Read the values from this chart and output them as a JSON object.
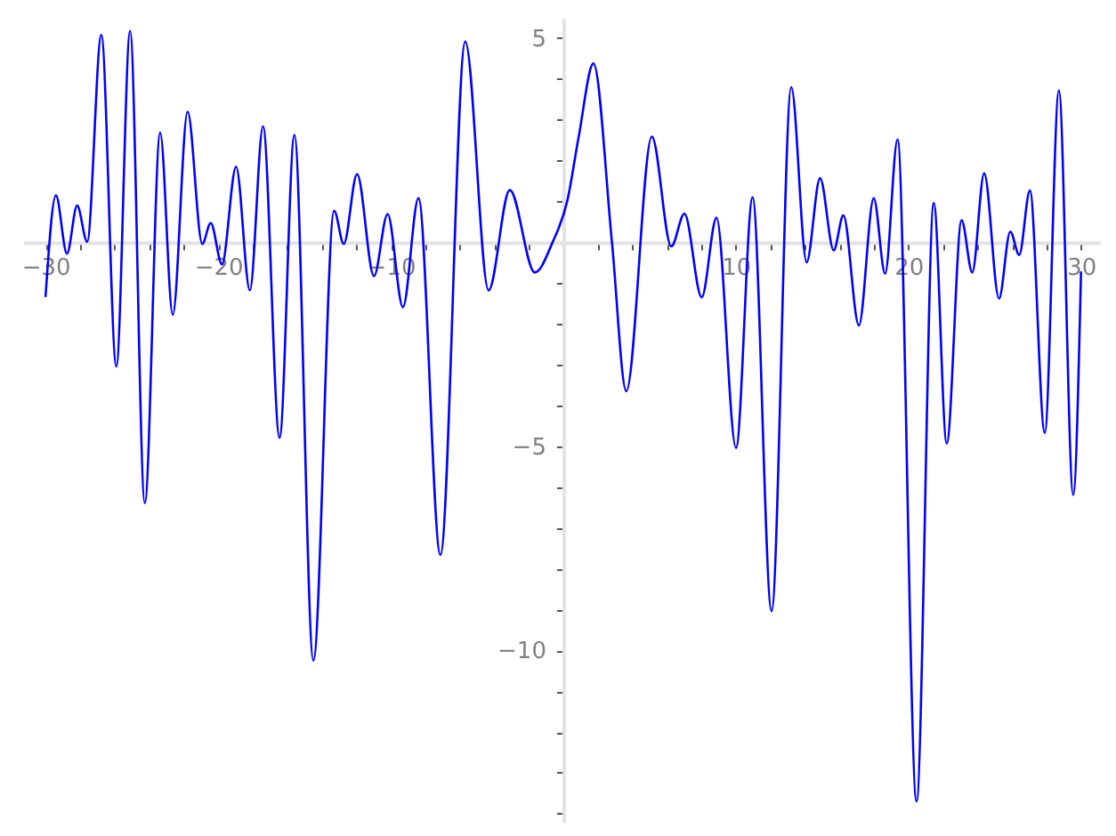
{
  "chart_data": {
    "type": "line",
    "x": [
      -30,
      -29.4,
      -28.76,
      -28.17,
      -27.59,
      -26.77,
      -25.9,
      -25.1,
      -24.25,
      -23.36,
      -22.63,
      -21.77,
      -20.92,
      -20.43,
      -19.78,
      -18.96,
      -18.16,
      -17.4,
      -16.44,
      -15.58,
      -14.48,
      -13.28,
      -12.72,
      -11.95,
      -10.97,
      -10.18,
      -9.29,
      -8.39,
      -7.12,
      -5.68,
      -4.33,
      -3.1,
      -1.65,
      -0.62,
      0.24,
      0.9,
      1.75,
      2.82,
      3.65,
      5.13,
      6.26,
      7.02,
      8.02,
      8.88,
      10.01,
      10.97,
      12.07,
      13.21,
      14.1,
      14.88,
      15.67,
      16.23,
      17.13,
      17.99,
      18.65,
      19.37,
      20.47,
      21.47,
      22.22,
      23.08,
      23.7,
      24.39,
      25.25,
      25.9,
      26.42,
      27.04,
      27.9,
      28.72,
      29.55,
      30
    ],
    "series": [
      {
        "color": "#0000ff",
        "values": [
          -1.32,
          1.15,
          -0.28,
          0.9,
          0.01,
          5.08,
          -3.04,
          5.18,
          -6.39,
          2.69,
          -1.78,
          3.2,
          -0.04,
          0.47,
          -0.54,
          1.85,
          -1.18,
          2.84,
          -4.79,
          2.63,
          -10.25,
          0.77,
          -0.04,
          1.67,
          -0.83,
          0.69,
          -1.59,
          1.08,
          -7.66,
          4.92,
          -1.18,
          1.28,
          -0.74,
          0.0,
          1.03,
          2.6,
          4.38,
          0.0,
          -3.65,
          2.59,
          -0.1,
          0.7,
          -1.35,
          0.6,
          -5.04,
          1.1,
          -9.04,
          3.8,
          -0.49,
          1.57,
          -0.2,
          0.66,
          -2.04,
          1.08,
          -0.77,
          2.52,
          -13.7,
          0.96,
          -4.93,
          0.54,
          -0.74,
          1.69,
          -1.38,
          0.26,
          -0.31,
          1.27,
          -4.67,
          3.72,
          -6.19,
          -0.74
        ]
      }
    ],
    "xlim": [
      -31.3,
      31.1
    ],
    "ylim": [
      -14.2,
      5.5
    ],
    "xticks": [
      -30,
      {
        "value": -28,
        "label": null
      },
      {
        "value": -26,
        "label": null
      },
      {
        "value": -24,
        "label": null
      },
      {
        "value": -22,
        "label": null
      },
      -20,
      {
        "value": -18,
        "label": null
      },
      {
        "value": -16,
        "label": null
      },
      {
        "value": -14,
        "label": null
      },
      {
        "value": -12,
        "label": null
      },
      -10,
      {
        "value": -8,
        "label": null
      },
      {
        "value": -6,
        "label": null
      },
      {
        "value": -4,
        "label": null
      },
      {
        "value": -2,
        "label": null
      },
      {
        "value": 2,
        "label": null
      },
      {
        "value": 4,
        "label": null
      },
      {
        "value": 6,
        "label": null
      },
      {
        "value": 8,
        "label": null
      },
      10,
      {
        "value": 12,
        "label": null
      },
      {
        "value": 14,
        "label": null
      },
      {
        "value": 16,
        "label": null
      },
      {
        "value": 18,
        "label": null
      },
      20,
      {
        "value": 22,
        "label": null
      },
      {
        "value": 24,
        "label": null
      },
      {
        "value": 26,
        "label": null
      },
      {
        "value": 28,
        "label": null
      },
      30
    ],
    "yticks": [
      {
        "value": -14,
        "label": null
      },
      {
        "value": -13,
        "label": null
      },
      {
        "value": -12,
        "label": null
      },
      {
        "value": -11,
        "label": null
      },
      -10,
      {
        "value": -9,
        "label": null
      },
      {
        "value": -8,
        "label": null
      },
      {
        "value": -7,
        "label": null
      },
      {
        "value": -6,
        "label": null
      },
      -5,
      {
        "value": -4,
        "label": null
      },
      {
        "value": -3,
        "label": null
      },
      {
        "value": -2,
        "label": null
      },
      {
        "value": -1,
        "label": null
      },
      {
        "value": 1,
        "label": null
      },
      {
        "value": 2,
        "label": null
      },
      {
        "value": 3,
        "label": null
      },
      {
        "value": 4,
        "label": null
      },
      5
    ]
  }
}
